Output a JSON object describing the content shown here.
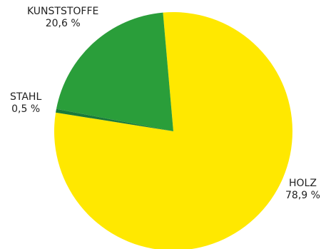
{
  "chart_data": {
    "type": "pie",
    "title": "",
    "slices": [
      {
        "label": "HOLZ",
        "value": 78.9,
        "value_label": "78,9 %",
        "color": "#FFE800"
      },
      {
        "label": "STAHL",
        "value": 0.5,
        "value_label": "0,5 %",
        "color": "#1A7A3A"
      },
      {
        "label": "KUNSTSTOFFE",
        "value": 20.6,
        "value_label": "20,6 %",
        "color": "#2A9E3A"
      }
    ],
    "start": "top, slightly right of 12 o'clock",
    "direction": "clockwise",
    "legend": "none (direct labels)"
  }
}
